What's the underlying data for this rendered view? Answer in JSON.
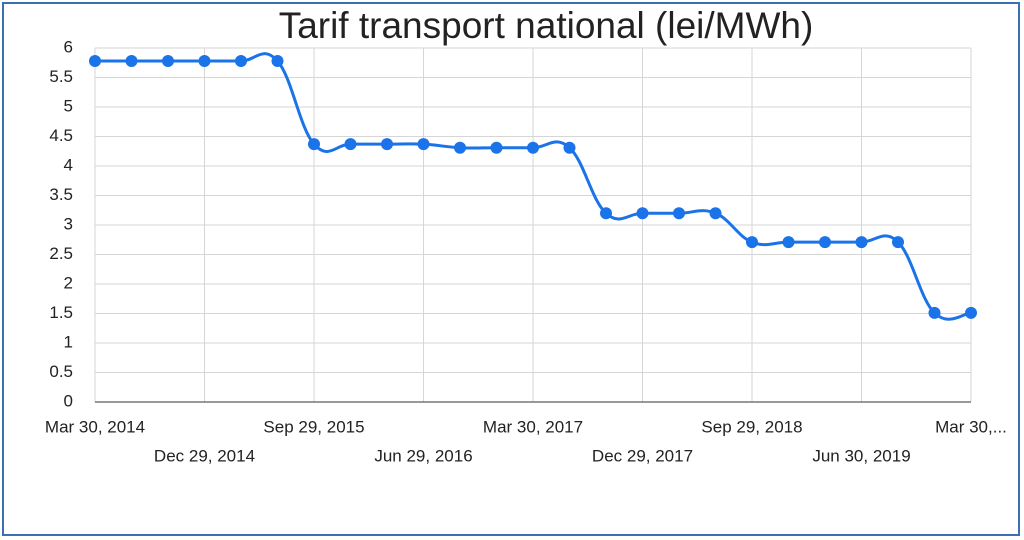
{
  "chart_data": {
    "type": "line",
    "title": "Tarif transport national (lei/MWh)",
    "categories": [
      "Mar 30, 2014",
      null,
      null,
      "Dec 29, 2014",
      null,
      null,
      "Sep 29, 2015",
      null,
      null,
      "Jun 29, 2016",
      null,
      null,
      "Mar 30, 2017",
      null,
      null,
      "Dec 29, 2017",
      null,
      null,
      "Sep 29, 2018",
      null,
      null,
      "Jun 30, 2019",
      null,
      null,
      "Mar 30,..."
    ],
    "series": [
      {
        "name": "Tarif",
        "color": "#1a73e8",
        "values": [
          5.78,
          5.78,
          5.78,
          5.78,
          5.78,
          5.78,
          4.37,
          4.37,
          4.37,
          4.37,
          4.31,
          4.31,
          4.31,
          4.31,
          3.2,
          3.2,
          3.2,
          3.2,
          2.71,
          2.71,
          2.71,
          2.71,
          2.71,
          1.51,
          1.51
        ]
      }
    ],
    "ylim": [
      0,
      6
    ],
    "yticks": [
      0,
      0.5,
      1,
      1.5,
      2,
      2.5,
      3,
      3.5,
      4,
      4.5,
      5,
      5.5,
      6
    ],
    "grid": true
  }
}
